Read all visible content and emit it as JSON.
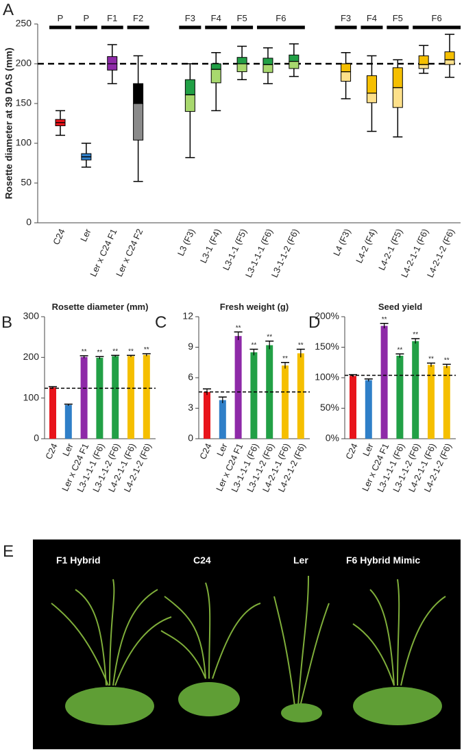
{
  "panel_labels": [
    "A",
    "B",
    "C",
    "D",
    "E"
  ],
  "chart_data": [
    {
      "type": "box",
      "y_label": "Rosette diameter at 39 DAS (mm)",
      "categories": [
        "C24",
        "Ler",
        "Ler x C24 F1",
        "Ler x C24 F2",
        "L3 (F3)",
        "L3-1 (F4)",
        "L3-1-1 (F5)",
        "L3-1-1-1 (F6)",
        "L3-1-1-2 (F6)",
        "L4 (F3)",
        "L4-2 (F4)",
        "L4-2-1 (F5)",
        "L4-2-1-1 (F6)",
        "L4-2-1-2 (F6)"
      ],
      "generations": [
        "P",
        "P",
        "F1",
        "F2",
        "F3",
        "F4",
        "F5",
        "F6",
        null,
        "F3",
        "F4",
        "F5",
        "F6",
        null
      ],
      "boxes": [
        {
          "min": 110,
          "q1": 122,
          "median": 126,
          "q3": 130,
          "max": 141,
          "colors": [
            "#e8141b",
            "#e8141b"
          ]
        },
        {
          "min": 70,
          "q1": 79,
          "median": 83,
          "q3": 87,
          "max": 100,
          "colors": [
            "#2f7fc8",
            "#2f7fc8"
          ]
        },
        {
          "min": 175,
          "q1": 192,
          "median": 200,
          "q3": 209,
          "max": 224,
          "colors": [
            "#8e2aa8",
            "#8e2aa8"
          ]
        },
        {
          "min": 52,
          "q1": 104,
          "median": 150,
          "q3": 175,
          "max": 210,
          "colors": [
            "#000000",
            "#8a8a8a"
          ]
        },
        {
          "min": 82,
          "q1": 140,
          "median": 161,
          "q3": 180,
          "max": 200,
          "colors": [
            "#22a046",
            "#a8d86e"
          ]
        },
        {
          "min": 141,
          "q1": 176,
          "median": 193,
          "q3": 200,
          "max": 214,
          "colors": [
            "#22a046",
            "#a8d86e"
          ]
        },
        {
          "min": 180,
          "q1": 190,
          "median": 200,
          "q3": 208,
          "max": 222,
          "colors": [
            "#22a046",
            "#a8d86e"
          ]
        },
        {
          "min": 175,
          "q1": 189,
          "median": 199,
          "q3": 207,
          "max": 220,
          "colors": [
            "#22a046",
            "#a8d86e"
          ]
        },
        {
          "min": 184,
          "q1": 194,
          "median": 203,
          "q3": 211,
          "max": 225,
          "colors": [
            "#22a046",
            "#a8d86e"
          ]
        },
        {
          "min": 156,
          "q1": 178,
          "median": 190,
          "q3": 200,
          "max": 214,
          "colors": [
            "#f5bf00",
            "#fde08a"
          ]
        },
        {
          "min": 115,
          "q1": 151,
          "median": 163,
          "q3": 185,
          "max": 210,
          "colors": [
            "#f5bf00",
            "#fde08a"
          ]
        },
        {
          "min": 108,
          "q1": 145,
          "median": 170,
          "q3": 195,
          "max": 205,
          "colors": [
            "#f5bf00",
            "#fde08a"
          ]
        },
        {
          "min": 188,
          "q1": 194,
          "median": 199,
          "q3": 210,
          "max": 223,
          "colors": [
            "#f5bf00",
            "#fde08a"
          ]
        },
        {
          "min": 183,
          "q1": 199,
          "median": 205,
          "q3": 215,
          "max": 237,
          "colors": [
            "#f5bf00",
            "#fde08a"
          ]
        }
      ],
      "reference_line": 200,
      "ylim": [
        0,
        250
      ],
      "yticks": [
        0,
        50,
        100,
        150,
        200,
        250
      ]
    },
    {
      "type": "bar",
      "title": "Rosette diameter (mm)",
      "categories": [
        "C24",
        "Ler",
        "Ler x C24 F1",
        "L3-1-1-1 (F6)",
        "L3-1-1-2 (F6)",
        "L4-2-1-1 (F6)",
        "L4-2-1-2 (F6)"
      ],
      "values": [
        126,
        83,
        201,
        199,
        203,
        203,
        206
      ],
      "errors": [
        2,
        2,
        3,
        3,
        2,
        2,
        3
      ],
      "colors": [
        "#e8141b",
        "#2f7fc8",
        "#8e2aa8",
        "#22a046",
        "#22a046",
        "#f5bf00",
        "#f5bf00"
      ],
      "significance": [
        null,
        null,
        "**",
        "**",
        "**",
        "**",
        "**"
      ],
      "reference_line": 124,
      "ylim": [
        0,
        300
      ],
      "yticks": [
        0,
        100,
        200,
        300
      ]
    },
    {
      "type": "bar",
      "title": "Fresh weight (g)",
      "categories": [
        "C24",
        "Ler",
        "Ler x C24 F1",
        "L3-1-1-1 (F6)",
        "L3-1-1-2 (F6)",
        "L4-2-1-1 (F6)",
        "L4-2-1-2 (F6)"
      ],
      "values": [
        4.6,
        3.8,
        10.1,
        8.5,
        9.2,
        7.2,
        8.4
      ],
      "errors": [
        0.3,
        0.3,
        0.4,
        0.3,
        0.4,
        0.3,
        0.4
      ],
      "colors": [
        "#e8141b",
        "#2f7fc8",
        "#8e2aa8",
        "#22a046",
        "#22a046",
        "#f5bf00",
        "#f5bf00"
      ],
      "significance": [
        null,
        null,
        "**",
        "**",
        "**",
        "**",
        "**"
      ],
      "reference_line": 4.6,
      "ylim": [
        0,
        12
      ],
      "yticks": [
        0,
        3,
        6,
        9,
        12
      ]
    },
    {
      "type": "bar",
      "title": "Seed yield",
      "categories": [
        "C24",
        "Ler",
        "Ler x C24 F1",
        "L3-1-1-1 (F6)",
        "L3-1-1-2 (F6)",
        "L4-2-1-1 (F6)",
        "L4-2-1-2 (F6)"
      ],
      "values": [
        103,
        96,
        185,
        136,
        160,
        121,
        119
      ],
      "errors": [
        2,
        2,
        4,
        3,
        4,
        3,
        3
      ],
      "colors": [
        "#e8141b",
        "#2f7fc8",
        "#8e2aa8",
        "#22a046",
        "#22a046",
        "#f5bf00",
        "#f5bf00"
      ],
      "significance": [
        null,
        null,
        "**",
        "**",
        "**",
        "**",
        "**"
      ],
      "reference_line": 104,
      "ylim": [
        0,
        200
      ],
      "yticks": [
        {
          "value": 0,
          "label": "0%"
        },
        {
          "value": 50,
          "label": "50%"
        },
        {
          "value": 100,
          "label": "100%"
        },
        {
          "value": 150,
          "label": "150%"
        },
        {
          "value": 200,
          "label": "200%"
        }
      ]
    }
  ],
  "photo": {
    "labels": [
      "F1 Hybrid",
      "C24",
      "Ler",
      "F6 Hybrid Mimic"
    ]
  }
}
